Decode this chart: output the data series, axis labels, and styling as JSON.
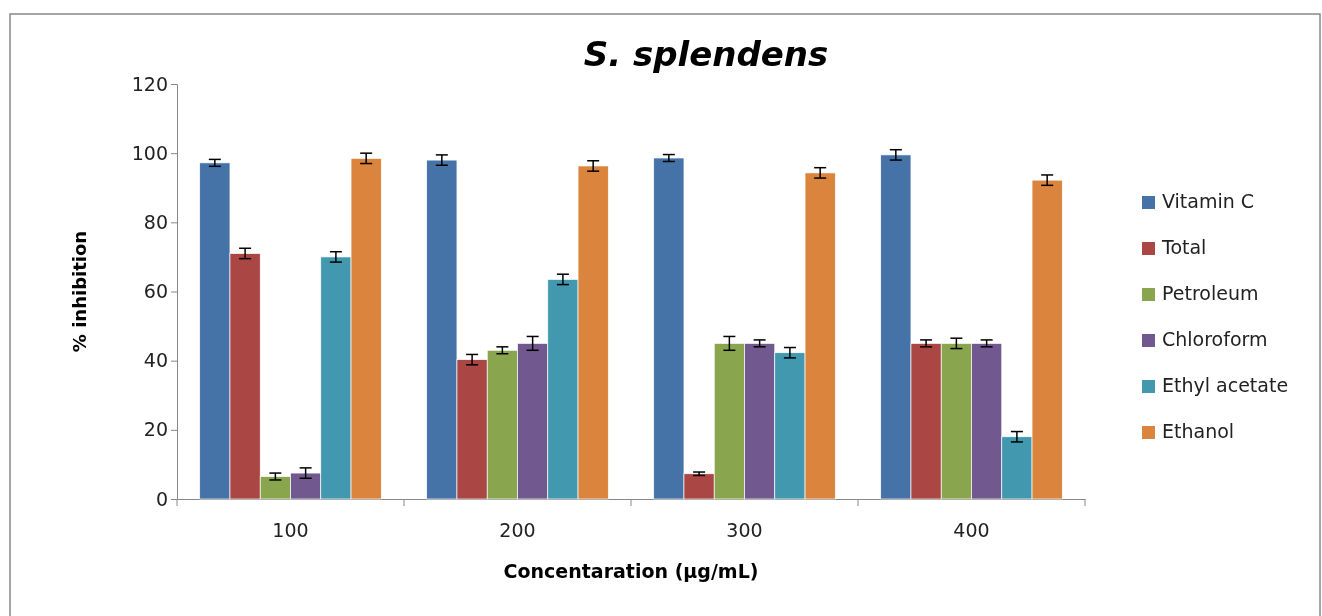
{
  "chart_data": {
    "type": "bar",
    "title": "S. splendens",
    "xlabel": "Concentaration (µg/mL)",
    "ylabel": "% inhibition",
    "categories": [
      "100",
      "200",
      "300",
      "400"
    ],
    "ylim": [
      0,
      120
    ],
    "yticks": [
      0,
      20,
      40,
      60,
      80,
      100,
      120
    ],
    "grid": false,
    "legend": "right",
    "series": [
      {
        "name": "Vitamin C",
        "color": "#4572a7",
        "values": [
          97.2,
          98,
          98.6,
          99.5
        ],
        "errors": [
          1,
          1.5,
          1,
          1.5
        ]
      },
      {
        "name": "Total",
        "color": "#aa4643",
        "values": [
          71,
          40.3,
          7.3,
          45
        ],
        "errors": [
          1.5,
          1.5,
          0.5,
          1
        ]
      },
      {
        "name": "Petroleum",
        "color": "#89a54e",
        "values": [
          6.5,
          43,
          45,
          45
        ],
        "errors": [
          1,
          1,
          2,
          1.5
        ]
      },
      {
        "name": "Chloroform",
        "color": "#71588f",
        "values": [
          7.5,
          45,
          45,
          45
        ],
        "errors": [
          1.5,
          2,
          1,
          1
        ]
      },
      {
        "name": "Ethyl acetate",
        "color": "#4198af",
        "values": [
          70,
          63.5,
          42.3,
          18
        ],
        "errors": [
          1.5,
          1.5,
          1.5,
          1.5
        ]
      },
      {
        "name": "Ethanol",
        "color": "#db843d",
        "values": [
          98.5,
          96.3,
          94.3,
          92.2
        ],
        "errors": [
          1.5,
          1.5,
          1.5,
          1.5
        ]
      }
    ]
  }
}
